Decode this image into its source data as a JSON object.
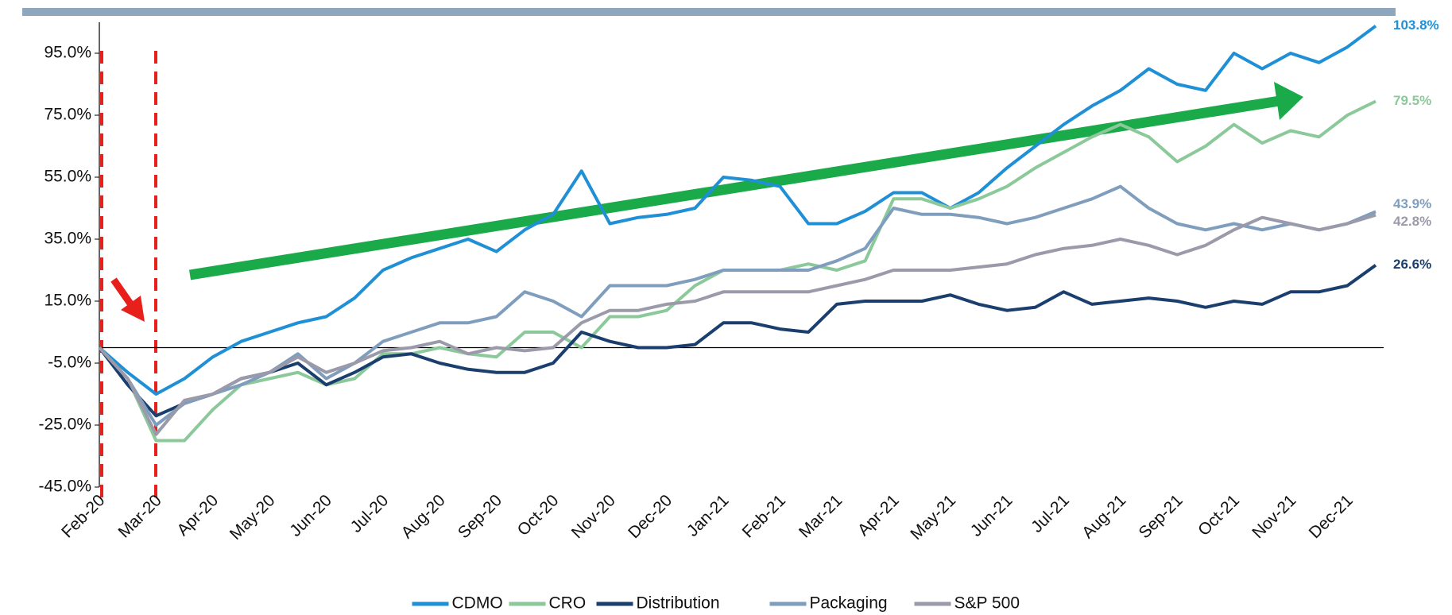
{
  "chart_data": {
    "type": "line",
    "categories": [
      "Feb-20",
      null,
      "Mar-20",
      null,
      "Apr-20",
      null,
      "May-20",
      null,
      "Jun-20",
      null,
      "Jul-20",
      null,
      "Aug-20",
      null,
      "Sep-20",
      null,
      "Oct-20",
      null,
      "Nov-20",
      null,
      "Dec-20",
      null,
      "Jan-21",
      null,
      "Feb-21",
      null,
      "Mar-21",
      null,
      "Apr-21",
      null,
      "May-21",
      null,
      "Jun-21",
      null,
      "Jul-21",
      null,
      "Aug-21",
      null,
      "Sep-21",
      null,
      "Oct-21",
      null,
      "Nov-21",
      null,
      "Dec-21",
      null
    ],
    "series": [
      {
        "name": "CDMO",
        "color": "#1f8fd6",
        "values": [
          0,
          -8,
          -15,
          -10,
          -3,
          2,
          5,
          8,
          10,
          16,
          25,
          29,
          32,
          35,
          31,
          38,
          43,
          57,
          40,
          42,
          43,
          45,
          55,
          54,
          52,
          40,
          40,
          44,
          50,
          50,
          45,
          50,
          58,
          65,
          72,
          78,
          83,
          90,
          85,
          83,
          95,
          90,
          95,
          92,
          97,
          103.8
        ],
        "value_labels": [
          null,
          null,
          null,
          null,
          null,
          null,
          null,
          null,
          null,
          null,
          null,
          null,
          null,
          null,
          null,
          null,
          null,
          null,
          null,
          null,
          null,
          null,
          null,
          null,
          null,
          null,
          null,
          null,
          null,
          null,
          null,
          null,
          null,
          null,
          null,
          null,
          null,
          null,
          null,
          null,
          null,
          null,
          null,
          null,
          null,
          "103.8%"
        ]
      },
      {
        "name": "CRO",
        "color": "#8cc99a",
        "values": [
          0,
          -10,
          -30,
          -30,
          -20,
          -12,
          -10,
          -8,
          -12,
          -10,
          -2,
          -2,
          0,
          -2,
          -3,
          5,
          5,
          0,
          10,
          10,
          12,
          20,
          25,
          25,
          25,
          27,
          25,
          28,
          48,
          48,
          45,
          48,
          52,
          58,
          63,
          68,
          72,
          68,
          60,
          65,
          72,
          66,
          70,
          68,
          75,
          79.5
        ],
        "value_labels": [
          null,
          null,
          null,
          null,
          null,
          null,
          null,
          null,
          null,
          null,
          null,
          null,
          null,
          null,
          null,
          null,
          null,
          null,
          null,
          null,
          null,
          null,
          null,
          null,
          null,
          null,
          null,
          null,
          null,
          null,
          null,
          null,
          null,
          null,
          null,
          null,
          null,
          null,
          null,
          null,
          null,
          null,
          null,
          null,
          null,
          "79.5%"
        ]
      },
      {
        "name": "Distribution",
        "color": "#1a3f6e",
        "values": [
          0,
          -12,
          -22,
          -18,
          -15,
          -10,
          -8,
          -5,
          -12,
          -8,
          -3,
          -2,
          -5,
          -7,
          -8,
          -8,
          -5,
          5,
          2,
          0,
          0,
          1,
          8,
          8,
          6,
          5,
          14,
          15,
          15,
          15,
          17,
          14,
          12,
          13,
          18,
          14,
          15,
          16,
          15,
          13,
          15,
          14,
          18,
          18,
          20,
          26.6
        ],
        "value_labels": [
          null,
          null,
          null,
          null,
          null,
          null,
          null,
          null,
          null,
          null,
          null,
          null,
          null,
          null,
          null,
          null,
          null,
          null,
          null,
          null,
          null,
          null,
          null,
          null,
          null,
          null,
          null,
          null,
          null,
          null,
          null,
          null,
          null,
          null,
          null,
          null,
          null,
          null,
          null,
          null,
          null,
          null,
          null,
          null,
          null,
          "26.6%"
        ]
      },
      {
        "name": "Packaging",
        "color": "#7f9ebd",
        "values": [
          0,
          -10,
          -25,
          -18,
          -15,
          -12,
          -8,
          -2,
          -10,
          -5,
          2,
          5,
          8,
          8,
          10,
          18,
          15,
          10,
          20,
          20,
          20,
          22,
          25,
          25,
          25,
          25,
          28,
          32,
          45,
          43,
          43,
          42,
          40,
          42,
          45,
          48,
          52,
          45,
          40,
          38,
          40,
          38,
          40,
          38,
          40,
          43.9
        ],
        "value_labels": [
          null,
          null,
          null,
          null,
          null,
          null,
          null,
          null,
          null,
          null,
          null,
          null,
          null,
          null,
          null,
          null,
          null,
          null,
          null,
          null,
          null,
          null,
          null,
          null,
          null,
          null,
          null,
          null,
          null,
          null,
          null,
          null,
          null,
          null,
          null,
          null,
          null,
          null,
          null,
          null,
          null,
          null,
          null,
          null,
          null,
          "43.9%"
        ]
      },
      {
        "name": "S&P 500",
        "color": "#9a9aaa",
        "values": [
          0,
          -10,
          -28,
          -17,
          -15,
          -10,
          -8,
          -3,
          -8,
          -5,
          -1,
          0,
          2,
          -2,
          0,
          -1,
          0,
          8,
          12,
          12,
          14,
          15,
          18,
          18,
          18,
          18,
          20,
          22,
          25,
          25,
          25,
          26,
          27,
          30,
          32,
          33,
          35,
          33,
          30,
          33,
          38,
          42,
          40,
          38,
          40,
          42.8
        ],
        "value_labels": [
          null,
          null,
          null,
          null,
          null,
          null,
          null,
          null,
          null,
          null,
          null,
          null,
          null,
          null,
          null,
          null,
          null,
          null,
          null,
          null,
          null,
          null,
          null,
          null,
          null,
          null,
          null,
          null,
          null,
          null,
          null,
          null,
          null,
          null,
          null,
          null,
          null,
          null,
          null,
          null,
          null,
          null,
          null,
          null,
          null,
          "42.8%"
        ]
      }
    ],
    "ylim": [
      -45,
      105
    ],
    "yticks": [
      {
        "value": -45,
        "label": "-45.0%"
      },
      {
        "value": -25,
        "label": "-25.0%"
      },
      {
        "value": -5,
        "label": "-5.0%"
      },
      {
        "value": 15,
        "label": "15.0%"
      },
      {
        "value": 35,
        "label": "35.0%"
      },
      {
        "value": 55,
        "label": "55.0%"
      },
      {
        "value": 75,
        "label": "75.0%"
      },
      {
        "value": 95,
        "label": "95.0%"
      }
    ],
    "legend": "bottom"
  }
}
